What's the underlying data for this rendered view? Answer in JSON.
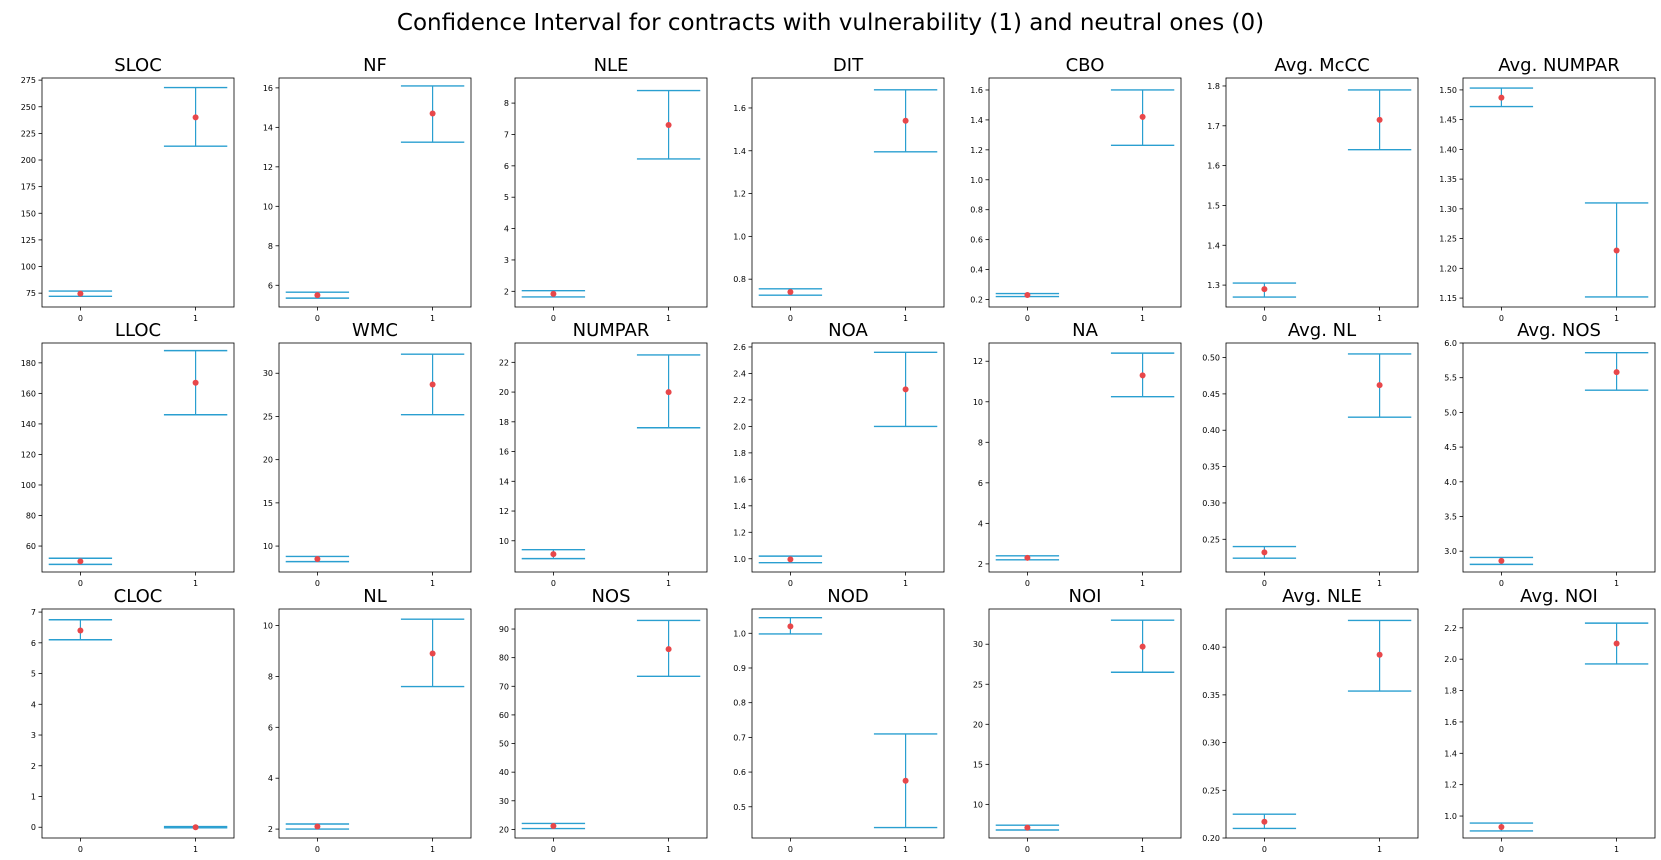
{
  "title": "Confidence Interval for contracts with vulnerability (1) and neutral ones (0)",
  "colors": {
    "errorbar": "#2a9fd0",
    "mean": "#e8474a",
    "axis": "#000000"
  },
  "chart_data": [
    {
      "type": "errorbar",
      "title": "SLOC",
      "categories": [
        "0",
        "1"
      ],
      "ylim": [
        62,
        277
      ],
      "yticks": [
        75,
        100,
        125,
        150,
        175,
        200,
        225,
        250,
        275
      ],
      "ytick_labels": [
        "75",
        "100",
        "125",
        "150",
        "175",
        "200",
        "225",
        "250",
        "275"
      ],
      "mean": [
        74.5,
        240
      ],
      "lower": [
        72,
        213
      ],
      "upper": [
        77,
        268
      ]
    },
    {
      "type": "errorbar",
      "title": "NF",
      "categories": [
        "0",
        "1"
      ],
      "ylim": [
        4.9,
        16.5
      ],
      "yticks": [
        6,
        8,
        10,
        12,
        14,
        16
      ],
      "ytick_labels": [
        "6",
        "8",
        "10",
        "12",
        "14",
        "16"
      ],
      "mean": [
        5.5,
        14.7
      ],
      "lower": [
        5.35,
        13.25
      ],
      "upper": [
        5.65,
        16.1
      ]
    },
    {
      "type": "errorbar",
      "title": "NLE",
      "categories": [
        "0",
        "1"
      ],
      "ylim": [
        1.5,
        8.8
      ],
      "yticks": [
        2,
        3,
        4,
        5,
        6,
        7,
        8
      ],
      "ytick_labels": [
        "2",
        "3",
        "4",
        "5",
        "6",
        "7",
        "8"
      ],
      "mean": [
        1.92,
        7.3
      ],
      "lower": [
        1.82,
        6.22
      ],
      "upper": [
        2.02,
        8.4
      ]
    },
    {
      "type": "errorbar",
      "title": "DIT",
      "categories": [
        "0",
        "1"
      ],
      "ylim": [
        0.67,
        1.74
      ],
      "yticks": [
        0.8,
        1.0,
        1.2,
        1.4,
        1.6
      ],
      "ytick_labels": [
        "0.8",
        "1.0",
        "1.2",
        "1.4",
        "1.6"
      ],
      "mean": [
        0.74,
        1.54
      ],
      "lower": [
        0.725,
        1.395
      ],
      "upper": [
        0.755,
        1.685
      ]
    },
    {
      "type": "errorbar",
      "title": "CBO",
      "categories": [
        "0",
        "1"
      ],
      "ylim": [
        0.15,
        1.68
      ],
      "yticks": [
        0.2,
        0.4,
        0.6,
        0.8,
        1.0,
        1.2,
        1.4,
        1.6
      ],
      "ytick_labels": [
        "0.2",
        "0.4",
        "0.6",
        "0.8",
        "1.0",
        "1.2",
        "1.4",
        "1.6"
      ],
      "mean": [
        0.23,
        1.42
      ],
      "lower": [
        0.22,
        1.23
      ],
      "upper": [
        0.24,
        1.6
      ]
    },
    {
      "type": "errorbar",
      "title": "Avg. McCC",
      "categories": [
        "0",
        "1"
      ],
      "ylim": [
        1.245,
        1.82
      ],
      "yticks": [
        1.3,
        1.4,
        1.5,
        1.6,
        1.7,
        1.8
      ],
      "ytick_labels": [
        "1.3",
        "1.4",
        "1.5",
        "1.6",
        "1.7",
        "1.8"
      ],
      "mean": [
        1.29,
        1.715
      ],
      "lower": [
        1.27,
        1.64
      ],
      "upper": [
        1.305,
        1.79
      ]
    },
    {
      "type": "errorbar",
      "title": "Avg. NUMPAR",
      "categories": [
        "0",
        "1"
      ],
      "ylim": [
        1.135,
        1.52
      ],
      "yticks": [
        1.15,
        1.2,
        1.25,
        1.3,
        1.35,
        1.4,
        1.45,
        1.5
      ],
      "ytick_labels": [
        "1.15",
        "1.20",
        "1.25",
        "1.30",
        "1.35",
        "1.40",
        "1.45",
        "1.50"
      ],
      "mean": [
        1.487,
        1.23
      ],
      "lower": [
        1.472,
        1.152
      ],
      "upper": [
        1.503,
        1.31
      ]
    },
    {
      "type": "errorbar",
      "title": "LLOC",
      "categories": [
        "0",
        "1"
      ],
      "ylim": [
        43,
        193
      ],
      "yticks": [
        60,
        80,
        100,
        120,
        140,
        160,
        180
      ],
      "ytick_labels": [
        "60",
        "80",
        "100",
        "120",
        "140",
        "160",
        "180"
      ],
      "mean": [
        50,
        167
      ],
      "lower": [
        48,
        146
      ],
      "upper": [
        52,
        188
      ]
    },
    {
      "type": "errorbar",
      "title": "WMC",
      "categories": [
        "0",
        "1"
      ],
      "ylim": [
        7.0,
        33.5
      ],
      "yticks": [
        10,
        15,
        20,
        25,
        30
      ],
      "ytick_labels": [
        "10",
        "15",
        "20",
        "25",
        "30"
      ],
      "mean": [
        8.5,
        28.7
      ],
      "lower": [
        8.2,
        25.2
      ],
      "upper": [
        8.8,
        32.2
      ]
    },
    {
      "type": "errorbar",
      "title": "NUMPAR",
      "categories": [
        "0",
        "1"
      ],
      "ylim": [
        7.9,
        23.3
      ],
      "yticks": [
        10,
        12,
        14,
        16,
        18,
        20,
        22
      ],
      "ytick_labels": [
        "10",
        "12",
        "14",
        "16",
        "18",
        "20",
        "22"
      ],
      "mean": [
        9.1,
        20
      ],
      "lower": [
        8.8,
        17.6
      ],
      "upper": [
        9.4,
        22.5
      ]
    },
    {
      "type": "errorbar",
      "title": "NOA",
      "categories": [
        "0",
        "1"
      ],
      "ylim": [
        0.9,
        2.63
      ],
      "yticks": [
        1.0,
        1.2,
        1.4,
        1.6,
        1.8,
        2.0,
        2.2,
        2.4,
        2.6
      ],
      "ytick_labels": [
        "1.0",
        "1.2",
        "1.4",
        "1.6",
        "1.8",
        "2.0",
        "2.2",
        "2.4",
        "2.6"
      ],
      "mean": [
        0.995,
        2.28
      ],
      "lower": [
        0.97,
        2.0
      ],
      "upper": [
        1.02,
        2.56
      ]
    },
    {
      "type": "errorbar",
      "title": "NA",
      "categories": [
        "0",
        "1"
      ],
      "ylim": [
        1.6,
        12.9
      ],
      "yticks": [
        2,
        4,
        6,
        8,
        10,
        12
      ],
      "ytick_labels": [
        "2",
        "4",
        "6",
        "8",
        "10",
        "12"
      ],
      "mean": [
        2.3,
        11.3
      ],
      "lower": [
        2.2,
        10.25
      ],
      "upper": [
        2.4,
        12.4
      ]
    },
    {
      "type": "errorbar",
      "title": "Avg. NL",
      "categories": [
        "0",
        "1"
      ],
      "ylim": [
        0.205,
        0.52
      ],
      "yticks": [
        0.25,
        0.3,
        0.35,
        0.4,
        0.45,
        0.5
      ],
      "ytick_labels": [
        "0.25",
        "0.30",
        "0.35",
        "0.40",
        "0.45",
        "0.50"
      ],
      "mean": [
        0.232,
        0.462
      ],
      "lower": [
        0.224,
        0.418
      ],
      "upper": [
        0.24,
        0.505
      ]
    },
    {
      "type": "errorbar",
      "title": "Avg. NOS",
      "categories": [
        "0",
        "1"
      ],
      "ylim": [
        2.7,
        6.0
      ],
      "yticks": [
        3.0,
        3.5,
        4.0,
        4.5,
        5.0,
        5.5,
        6.0
      ],
      "ytick_labels": [
        "3.0",
        "3.5",
        "4.0",
        "4.5",
        "5.0",
        "5.5",
        "6.0"
      ],
      "mean": [
        2.86,
        5.58
      ],
      "lower": [
        2.81,
        5.32
      ],
      "upper": [
        2.91,
        5.86
      ]
    },
    {
      "type": "errorbar",
      "title": "CLOC",
      "categories": [
        "0",
        "1"
      ],
      "ylim": [
        -0.35,
        7.1
      ],
      "yticks": [
        0,
        1,
        2,
        3,
        4,
        5,
        6,
        7
      ],
      "ytick_labels": [
        "0",
        "1",
        "2",
        "3",
        "4",
        "5",
        "6",
        "7"
      ],
      "mean": [
        6.4,
        0.0
      ],
      "lower": [
        6.1,
        -0.02
      ],
      "upper": [
        6.75,
        0.02
      ]
    },
    {
      "type": "errorbar",
      "title": "NL",
      "categories": [
        "0",
        "1"
      ],
      "ylim": [
        1.65,
        10.65
      ],
      "yticks": [
        2,
        4,
        6,
        8,
        10
      ],
      "ytick_labels": [
        "2",
        "4",
        "6",
        "8",
        "10"
      ],
      "mean": [
        2.1,
        8.9
      ],
      "lower": [
        2.0,
        7.6
      ],
      "upper": [
        2.2,
        10.25
      ]
    },
    {
      "type": "errorbar",
      "title": "NOS",
      "categories": [
        "0",
        "1"
      ],
      "ylim": [
        17,
        97
      ],
      "yticks": [
        20,
        30,
        40,
        50,
        60,
        70,
        80,
        90
      ],
      "ytick_labels": [
        "20",
        "30",
        "40",
        "50",
        "60",
        "70",
        "80",
        "90"
      ],
      "mean": [
        21.2,
        83
      ],
      "lower": [
        20.3,
        73.5
      ],
      "upper": [
        22.1,
        93
      ]
    },
    {
      "type": "errorbar",
      "title": "NOD",
      "categories": [
        "0",
        "1"
      ],
      "ylim": [
        0.41,
        1.07
      ],
      "yticks": [
        0.5,
        0.6,
        0.7,
        0.8,
        0.9,
        1.0
      ],
      "ytick_labels": [
        "0.5",
        "0.6",
        "0.7",
        "0.8",
        "0.9",
        "1.0"
      ],
      "mean": [
        1.02,
        0.575
      ],
      "lower": [
        0.998,
        0.44
      ],
      "upper": [
        1.045,
        0.71
      ]
    },
    {
      "type": "errorbar",
      "title": "NOI",
      "categories": [
        "0",
        "1"
      ],
      "ylim": [
        5.8,
        34.4
      ],
      "yticks": [
        10,
        15,
        20,
        25,
        30
      ],
      "ytick_labels": [
        "10",
        "15",
        "20",
        "25",
        "30"
      ],
      "mean": [
        7.1,
        29.7
      ],
      "lower": [
        6.8,
        26.5
      ],
      "upper": [
        7.4,
        33
      ]
    },
    {
      "type": "errorbar",
      "title": "Avg. NLE",
      "categories": [
        "0",
        "1"
      ],
      "ylim": [
        0.2,
        0.44
      ],
      "yticks": [
        0.2,
        0.25,
        0.3,
        0.35,
        0.4
      ],
      "ytick_labels": [
        "0.20",
        "0.25",
        "0.30",
        "0.35",
        "0.40"
      ],
      "mean": [
        0.217,
        0.392
      ],
      "lower": [
        0.21,
        0.354
      ],
      "upper": [
        0.225,
        0.428
      ]
    },
    {
      "type": "errorbar",
      "title": "Avg. NOI",
      "categories": [
        "0",
        "1"
      ],
      "ylim": [
        0.86,
        2.32
      ],
      "yticks": [
        1.0,
        1.2,
        1.4,
        1.6,
        1.8,
        2.0,
        2.2
      ],
      "ytick_labels": [
        "1.0",
        "1.2",
        "1.4",
        "1.6",
        "1.8",
        "2.0",
        "2.2"
      ],
      "mean": [
        0.93,
        2.1
      ],
      "lower": [
        0.905,
        1.97
      ],
      "upper": [
        0.955,
        2.23
      ]
    }
  ]
}
